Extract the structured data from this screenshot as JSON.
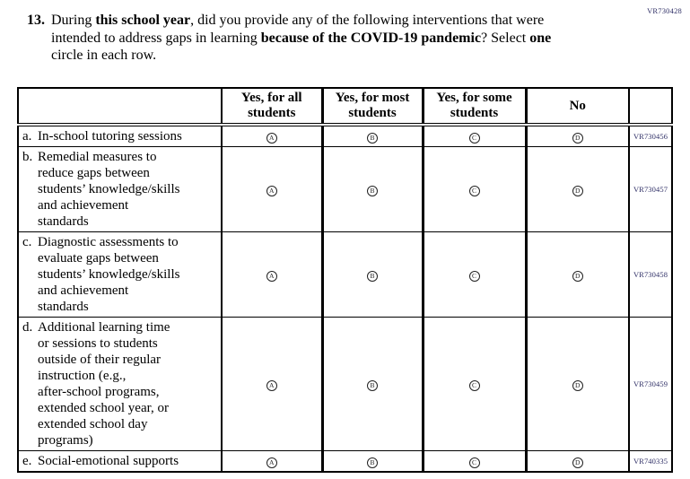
{
  "page": {
    "top_right_code": "VR730428"
  },
  "question": {
    "number": "13.",
    "segments": [
      {
        "text": "During ",
        "bold": false
      },
      {
        "text": "this school year",
        "bold": true
      },
      {
        "text": ", did you provide any of the following interventions that were\nintended to address gaps in learning ",
        "bold": false
      },
      {
        "text": "because of the COVID-19 pandemic",
        "bold": true
      },
      {
        "text": "? Select ",
        "bold": false
      },
      {
        "text": "one",
        "bold": true
      },
      {
        "text": "\ncircle in each row.",
        "bold": false
      }
    ]
  },
  "table": {
    "columns": [
      "",
      "Yes, for all\nstudents",
      "Yes, for most\nstudents",
      "Yes, for some\nstudents",
      "No",
      ""
    ],
    "options": [
      "A",
      "B",
      "C",
      "D"
    ],
    "rows": [
      {
        "letter": "a.",
        "label": "In-school tutoring sessions",
        "code": "VR730456"
      },
      {
        "letter": "b.",
        "label": "Remedial measures to\nreduce gaps between\nstudents’ knowledge/skills\nand achievement\nstandards",
        "code": "VR730457"
      },
      {
        "letter": "c.",
        "label": "Diagnostic assessments to\nevaluate gaps between\nstudents’ knowledge/skills\nand achievement\nstandards",
        "code": "VR730458"
      },
      {
        "letter": "d.",
        "label": "Additional learning time\nor sessions to students\noutside of their regular\ninstruction (e.g.,\nafter-school programs,\nextended school year, or\nextended school day\nprograms)",
        "code": "VR730459"
      },
      {
        "letter": "e.",
        "label": "Social-emotional supports",
        "code": "VR740335"
      }
    ]
  },
  "colors": {
    "code_text": "#2f2f66",
    "border": "#000000",
    "ink": "#000000"
  }
}
